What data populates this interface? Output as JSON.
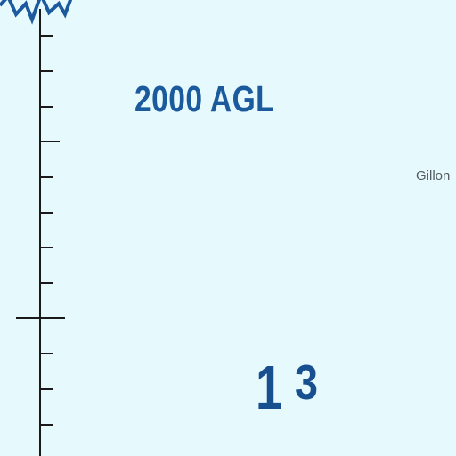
{
  "map": {
    "altitude_label": "2000 AGL",
    "place_name": "Gillon",
    "elevation": {
      "major": "1",
      "minor": "3"
    }
  },
  "colors": {
    "water": "#e6f9fc",
    "airspace_blue": "#1c5a9e",
    "scale_line": "#1a1a1a",
    "place_text": "#555b5f"
  },
  "icons": {
    "boundary": "zigzag-boundary-icon",
    "scale": "tick-scale-icon"
  }
}
